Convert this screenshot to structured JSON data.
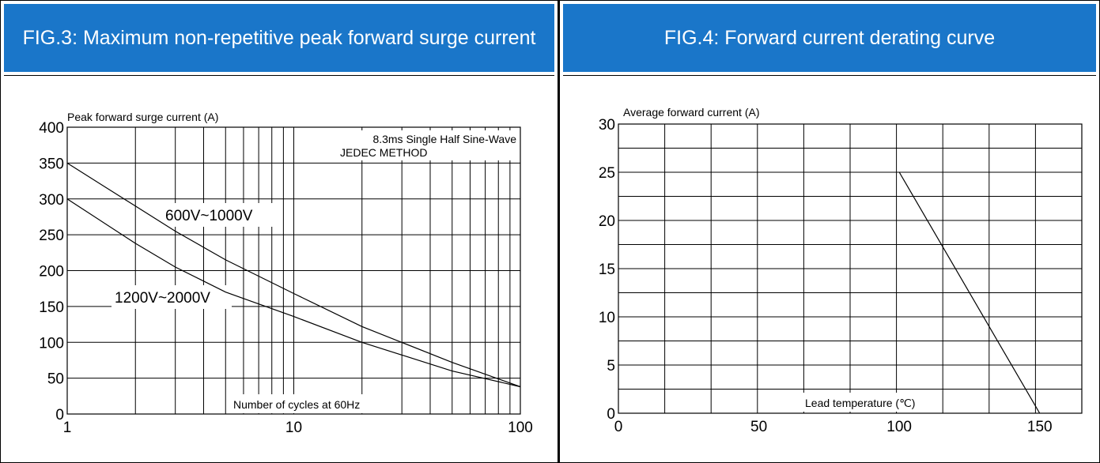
{
  "charts": [
    {
      "header": "FIG.3: Maximum non-repetitive peak forward surge current",
      "chart_data": {
        "type": "line",
        "title": "FIG.3: Maximum non-repetitive peak forward surge current",
        "ylabel": "Peak forward surge current (A)",
        "xlabel": "Number of cycles at 60Hz",
        "x_scale": "log",
        "xlim": [
          1,
          100
        ],
        "ylim": [
          0,
          400
        ],
        "x_ticks": [
          1,
          10,
          100
        ],
        "x_tick_labels": [
          "1",
          "10",
          "100"
        ],
        "y_ticks": [
          0,
          50,
          100,
          150,
          200,
          250,
          300,
          350,
          400
        ],
        "y_tick_labels": [
          "0",
          "50",
          "100",
          "150",
          "200",
          "250",
          "300",
          "350",
          "400"
        ],
        "annotation": [
          "8.3ms Single Half Sine-Wave",
          "JEDEC METHOD"
        ],
        "grid": true,
        "series": [
          {
            "name": "600V~1000V",
            "x": [
              1,
              2,
              3,
              5,
              10,
              20,
              50,
              100
            ],
            "y": [
              350,
              290,
              255,
              215,
              168,
              122,
              72,
              38
            ]
          },
          {
            "name": "1200V~2000V",
            "x": [
              1,
              2,
              3,
              5,
              10,
              20,
              50,
              100
            ],
            "y": [
              300,
              238,
              205,
              170,
              136,
              100,
              60,
              38
            ]
          }
        ]
      }
    },
    {
      "header": "FIG.4: Forward current derating curve",
      "chart_data": {
        "type": "line",
        "title": "FIG.4: Forward current derating curve",
        "ylabel": "Average forward current (A)",
        "xlabel": "Lead temperature (℃)",
        "xlim": [
          0,
          165
        ],
        "ylim": [
          0,
          30
        ],
        "x_ticks": [
          0,
          50,
          100,
          150
        ],
        "x_tick_labels": [
          "0",
          "50",
          "100",
          "150"
        ],
        "y_ticks": [
          0,
          5,
          10,
          15,
          20,
          25,
          30
        ],
        "y_tick_labels": [
          "0",
          "5",
          "10",
          "15",
          "20",
          "25",
          "30"
        ],
        "grid": true,
        "series": [
          {
            "name": "",
            "x": [
              100,
              150
            ],
            "y": [
              25,
              0
            ]
          }
        ]
      }
    }
  ]
}
